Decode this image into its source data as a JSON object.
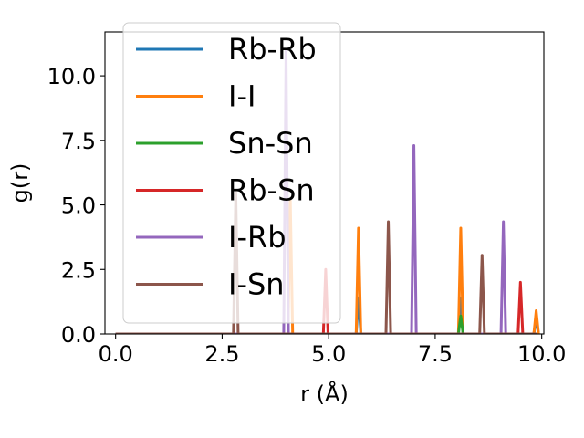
{
  "chart_data": {
    "type": "line",
    "title": "",
    "xlabel": "r (Å)",
    "ylabel": "g(r)",
    "xlim": [
      -0.25,
      10.05
    ],
    "ylim": [
      0,
      11.7
    ],
    "xticks": [
      "0.0",
      "2.5",
      "5.0",
      "7.5",
      "10.0"
    ],
    "yticks": [
      "0.0",
      "2.5",
      "5.0",
      "7.5",
      "10.0"
    ],
    "legend_position": "upper-left",
    "grid": false,
    "series": [
      {
        "name": "Rb-Rb",
        "color": "#1f77b4",
        "peaks": [
          [
            5.7,
            1.4
          ],
          [
            8.1,
            1.4
          ],
          [
            9.87,
            0.6
          ]
        ]
      },
      {
        "name": "I-I",
        "color": "#ff7f0e",
        "peaks": [
          [
            4.1,
            5.2
          ],
          [
            5.7,
            4.1
          ],
          [
            8.1,
            4.1
          ],
          [
            9.87,
            0.9
          ]
        ]
      },
      {
        "name": "Sn-Sn",
        "color": "#2ca02c",
        "peaks": [
          [
            8.1,
            0.7
          ]
        ]
      },
      {
        "name": "Rb-Sn",
        "color": "#d62728",
        "peaks": [
          [
            4.93,
            2.5
          ],
          [
            9.5,
            2.0
          ]
        ]
      },
      {
        "name": "I-Rb",
        "color": "#9467bd",
        "peaks": [
          [
            4.0,
            11.0
          ],
          [
            7.0,
            7.3
          ],
          [
            9.1,
            4.35
          ]
        ]
      },
      {
        "name": "I-Sn",
        "color": "#8c564b",
        "peaks": [
          [
            2.82,
            5.5
          ],
          [
            6.4,
            4.35
          ],
          [
            8.6,
            3.05
          ]
        ]
      }
    ]
  }
}
